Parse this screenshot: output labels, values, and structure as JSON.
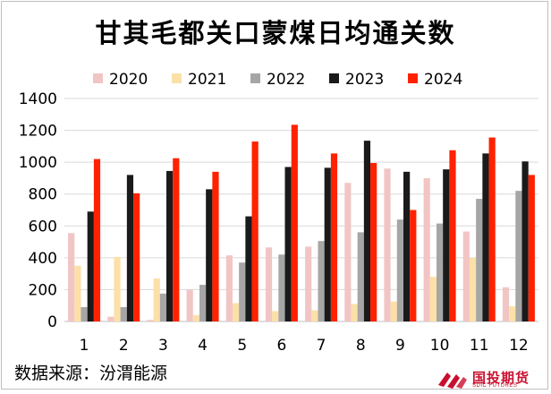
{
  "chart_data": {
    "type": "bar",
    "title": "甘其毛都关口蒙煤日均通关数",
    "categories": [
      "1",
      "2",
      "3",
      "4",
      "5",
      "6",
      "7",
      "8",
      "9",
      "10",
      "11",
      "12"
    ],
    "series": [
      {
        "name": "2020",
        "color": "#f2c5c5",
        "values": [
          555,
          30,
          10,
          200,
          415,
          465,
          470,
          870,
          960,
          900,
          565,
          215
        ]
      },
      {
        "name": "2021",
        "color": "#fbe0a8",
        "values": [
          350,
          405,
          270,
          40,
          115,
          65,
          70,
          110,
          125,
          280,
          400,
          95
        ]
      },
      {
        "name": "2022",
        "color": "#a6a6a6",
        "values": [
          90,
          90,
          175,
          230,
          370,
          420,
          505,
          560,
          640,
          615,
          770,
          820
        ]
      },
      {
        "name": "2023",
        "color": "#1a1a1a",
        "values": [
          690,
          920,
          945,
          830,
          660,
          970,
          965,
          1135,
          940,
          955,
          1055,
          1005
        ]
      },
      {
        "name": "2024",
        "color": "#ff2200",
        "values": [
          1020,
          805,
          1025,
          940,
          1130,
          1235,
          1055,
          995,
          700,
          1075,
          1155,
          920
        ]
      }
    ],
    "xlabel": "",
    "ylabel": "",
    "ylim": [
      0,
      1400
    ],
    "yticks": [
      0,
      200,
      400,
      600,
      800,
      1000,
      1200,
      1400
    ],
    "grid": true,
    "legend_position": "top"
  },
  "footer": {
    "source": "数据来源：汾渭能源"
  },
  "logo": {
    "name": "国投期货",
    "en": "SDIC FUTURES"
  }
}
